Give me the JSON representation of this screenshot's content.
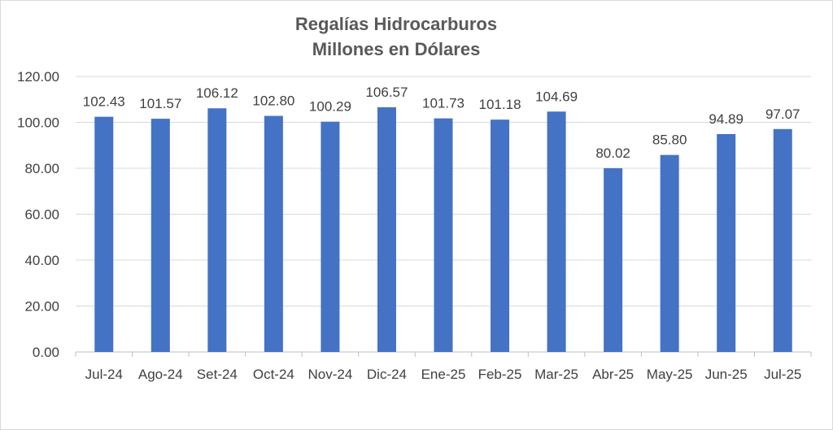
{
  "chart_data": {
    "type": "bar",
    "title": "Regalías Hidrocarburos",
    "subtitle": "Millones en Dólares",
    "categories": [
      "Jul-24",
      "Ago-24",
      "Set-24",
      "Oct-24",
      "Nov-24",
      "Dic-24",
      "Ene-25",
      "Feb-25",
      "Mar-25",
      "Abr-25",
      "May-25",
      "Jun-25",
      "Jul-25"
    ],
    "values": [
      102.43,
      101.57,
      106.12,
      102.8,
      100.29,
      106.57,
      101.73,
      101.18,
      104.69,
      80.02,
      85.8,
      94.89,
      97.07
    ],
    "value_labels": [
      "102.43",
      "101.57",
      "106.12",
      "102.80",
      "100.29",
      "106.57",
      "101.73",
      "101.18",
      "104.69",
      "80.02",
      "85.80",
      "94.89",
      "97.07"
    ],
    "ylim": [
      0,
      120
    ],
    "yticks": [
      "0.00",
      "20.00",
      "40.00",
      "60.00",
      "80.00",
      "100.00",
      "120.00"
    ],
    "xlabel": "",
    "ylabel": "",
    "grid": true,
    "legend": "none",
    "bar_color": "#4472c4"
  }
}
